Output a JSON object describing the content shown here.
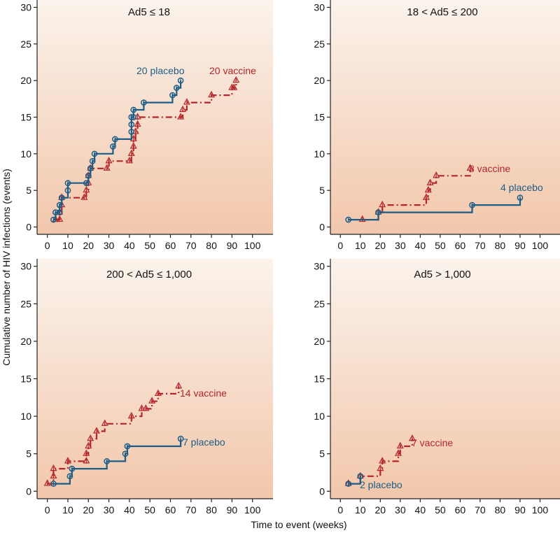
{
  "figure": {
    "ylabel": "Cumulative number of HIV infections (events)",
    "xlabel": "Time to event (weeks)"
  },
  "colors": {
    "placebo": "#1b5d86",
    "vaccine": "#b3262a",
    "bg_top": "#fbf3ec",
    "bg_bottom": "#f2c7ab"
  },
  "chart_data": [
    {
      "type": "line",
      "title": "Ad5 ≤ 18",
      "xlabel": "Time to event (weeks)",
      "ylabel": "Cumulative number of HIV infections (events)",
      "xlim": [
        -5,
        110
      ],
      "ylim": [
        -1,
        31
      ],
      "xticks": [
        0,
        10,
        20,
        30,
        40,
        50,
        60,
        70,
        80,
        90,
        100
      ],
      "yticks": [
        0,
        5,
        10,
        15,
        20,
        25,
        30
      ],
      "series": [
        {
          "name": "placebo",
          "label": "20 placebo",
          "x": [
            3,
            4,
            6,
            6,
            7,
            10,
            10,
            19,
            20,
            21,
            22,
            23,
            32,
            33,
            41,
            41,
            41,
            42,
            42,
            47,
            61,
            63,
            65
          ],
          "y": [
            1,
            2,
            2,
            3,
            4,
            5,
            6,
            6,
            7,
            8,
            9,
            10,
            11,
            12,
            13,
            14,
            15,
            15,
            16,
            17,
            18,
            19,
            20
          ]
        },
        {
          "name": "vaccine",
          "label": "20 vaccine",
          "x": [
            4,
            6,
            6,
            7,
            7,
            18,
            19,
            20,
            20,
            21,
            29,
            30,
            40,
            41,
            42,
            42,
            43,
            44,
            44,
            65,
            66,
            68,
            80,
            90,
            91,
            92
          ],
          "y": [
            1,
            1,
            2,
            3,
            4,
            4,
            5,
            6,
            7,
            8,
            8,
            9,
            9,
            10,
            11,
            12,
            13,
            14,
            15,
            15,
            16,
            17,
            18,
            19,
            19,
            20
          ]
        }
      ]
    },
    {
      "type": "line",
      "title": "18 < Ad5 ≤ 200",
      "xlabel": "Time to event (weeks)",
      "ylabel": "Cumulative number of HIV infections (events)",
      "xlim": [
        -5,
        110
      ],
      "ylim": [
        -1,
        31
      ],
      "xticks": [
        0,
        10,
        20,
        30,
        40,
        50,
        60,
        70,
        80,
        90,
        100
      ],
      "yticks": [
        0,
        5,
        10,
        15,
        20,
        25,
        30
      ],
      "series": [
        {
          "name": "placebo",
          "label": "4 placebo",
          "x": [
            4,
            19,
            66,
            90
          ],
          "y": [
            1,
            2,
            3,
            4
          ]
        },
        {
          "name": "vaccine",
          "label": "8 vaccine",
          "x": [
            11,
            19,
            21,
            43,
            44,
            45,
            48,
            65
          ],
          "y": [
            1,
            2,
            3,
            4,
            5,
            6,
            7,
            8
          ]
        }
      ]
    },
    {
      "type": "line",
      "title": "200 < Ad5 ≤ 1,000",
      "xlabel": "Time to event (weeks)",
      "ylabel": "Cumulative number of HIV infections (events)",
      "xlim": [
        -5,
        110
      ],
      "ylim": [
        -1,
        31
      ],
      "xticks": [
        0,
        10,
        20,
        30,
        40,
        50,
        60,
        70,
        80,
        90,
        100
      ],
      "yticks": [
        0,
        5,
        10,
        15,
        20,
        25,
        30
      ],
      "series": [
        {
          "name": "placebo",
          "label": "7 placebo",
          "x": [
            3,
            11,
            12,
            29,
            38,
            39,
            65
          ],
          "y": [
            1,
            2,
            3,
            4,
            5,
            6,
            7
          ]
        },
        {
          "name": "vaccine",
          "label": "14 vaccine",
          "x": [
            0,
            3,
            3,
            10,
            19,
            19,
            20,
            21,
            24,
            28,
            41,
            46,
            48,
            51,
            54,
            64
          ],
          "y": [
            1,
            2,
            3,
            4,
            4,
            5,
            6,
            7,
            8,
            9,
            10,
            11,
            11,
            12,
            13,
            14
          ]
        }
      ]
    },
    {
      "type": "line",
      "title": "Ad5 > 1,000",
      "xlabel": "Time to event (weeks)",
      "ylabel": "Cumulative number of HIV infections (events)",
      "xlim": [
        -5,
        110
      ],
      "ylim": [
        -1,
        31
      ],
      "xticks": [
        0,
        10,
        20,
        30,
        40,
        50,
        60,
        70,
        80,
        90,
        100
      ],
      "yticks": [
        0,
        5,
        10,
        15,
        20,
        25,
        30
      ],
      "series": [
        {
          "name": "placebo",
          "label": "2 placebo",
          "x": [
            4,
            10
          ],
          "y": [
            1,
            2
          ]
        },
        {
          "name": "vaccine",
          "label": "7 vaccine",
          "x": [
            4,
            10,
            20,
            21,
            29,
            30,
            36
          ],
          "y": [
            1,
            2,
            3,
            4,
            5,
            6,
            7
          ]
        }
      ]
    }
  ]
}
